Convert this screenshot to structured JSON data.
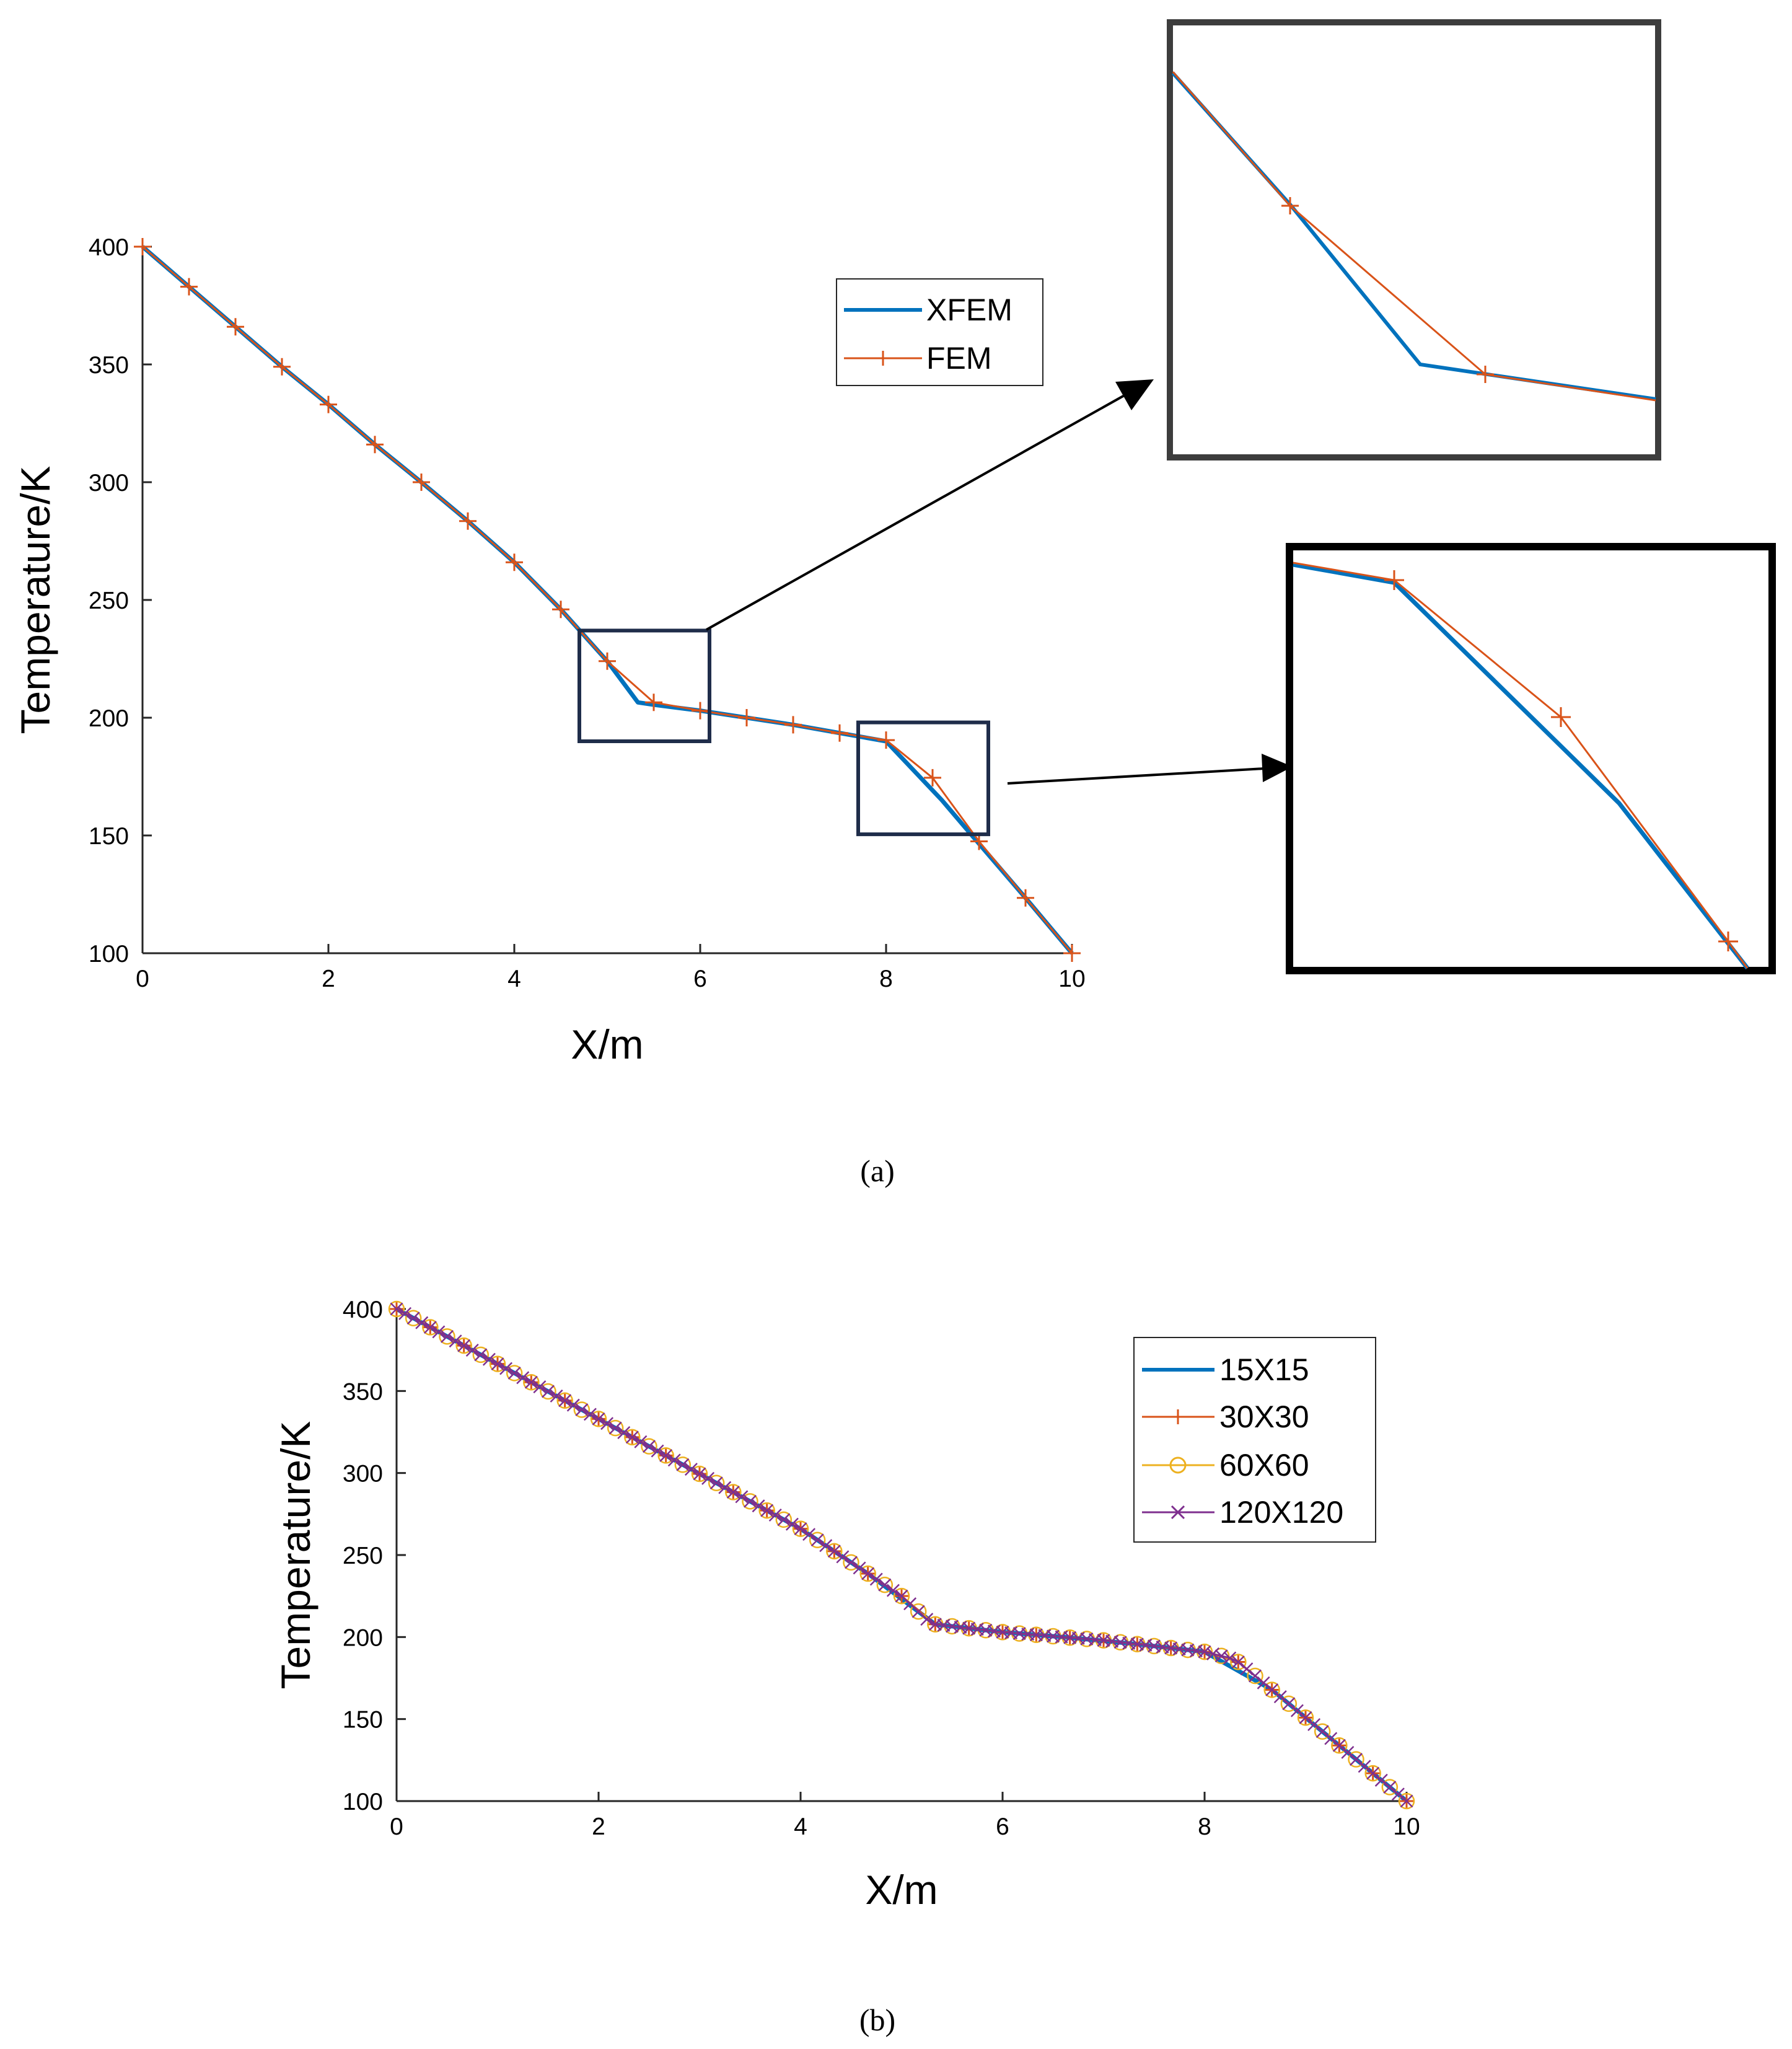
{
  "colors": {
    "xfem": "#0072BD",
    "fem": "#D95319",
    "mesh_15": "#0072BD",
    "mesh_30": "#D95319",
    "mesh_60": "#EDB120",
    "mesh_120": "#7E2F8E",
    "zoom_box": "#1f2d4a",
    "inset_a_frame": "#3d3d3d",
    "inset_b_frame": "#000000"
  },
  "chart_data": [
    {
      "id": "a",
      "caption": "(a)",
      "type": "line",
      "xlabel": "X/m",
      "ylabel": "Temperature/K",
      "xlim": [
        0,
        10
      ],
      "ylim": [
        100,
        400
      ],
      "xticks": [
        "0",
        "2",
        "4",
        "6",
        "8",
        "10"
      ],
      "yticks": [
        "100",
        "150",
        "200",
        "250",
        "300",
        "350",
        "400"
      ],
      "legend_position": "inside-top-right",
      "series": [
        {
          "name": "XFEM",
          "marker": "none",
          "x": [
            0,
            0.5,
            1,
            1.5,
            2,
            2.5,
            3,
            3.5,
            4,
            4.5,
            5,
            5.33,
            5.5,
            6,
            6.5,
            7,
            7.5,
            8,
            8.6,
            9,
            9.5,
            10
          ],
          "y": [
            400,
            383,
            366,
            349,
            333,
            316,
            300,
            283.5,
            266,
            246,
            224,
            206.5,
            205.5,
            203,
            200,
            197,
            193.5,
            190,
            165,
            146.5,
            123.5,
            100
          ]
        },
        {
          "name": "FEM",
          "marker": "+",
          "x": [
            0,
            0.5,
            1,
            1.5,
            2,
            2.5,
            3,
            3.5,
            4,
            4.5,
            5,
            5.5,
            6,
            6.5,
            7,
            7.5,
            8,
            8.5,
            9,
            9.5,
            10
          ],
          "y": [
            400,
            383,
            366,
            349,
            333,
            316,
            300,
            283.5,
            266,
            246,
            224,
            206.5,
            203,
            200,
            197,
            193.5,
            190.5,
            174.5,
            147.5,
            123.5,
            100
          ]
        }
      ],
      "zoom_regions": [
        {
          "x": [
            4.7,
            6.1
          ],
          "y": [
            190,
            237
          ],
          "inset": "top"
        },
        {
          "x": [
            7.7,
            9.1
          ],
          "y": [
            150.5,
            198
          ],
          "inset": "bottom"
        }
      ]
    },
    {
      "id": "b",
      "caption": "(b)",
      "type": "line",
      "xlabel": "X/m",
      "ylabel": "Temperature/K",
      "xlim": [
        0,
        10
      ],
      "ylim": [
        100,
        400
      ],
      "xticks": [
        "0",
        "2",
        "4",
        "6",
        "8",
        "10"
      ],
      "yticks": [
        "100",
        "150",
        "200",
        "250",
        "300",
        "350",
        "400"
      ],
      "legend_position": "inside-top-right",
      "profile": {
        "x": [
          0,
          4,
          5,
          5.3,
          6,
          7,
          8,
          8.3,
          10
        ],
        "y": [
          400,
          266,
          225,
          208,
          203,
          198,
          191,
          186.5,
          100
        ]
      },
      "series": [
        {
          "name": "15X15",
          "marker": "none",
          "count": 16
        },
        {
          "name": "30X30",
          "marker": "+",
          "count": 31
        },
        {
          "name": "60X60",
          "marker": "o",
          "count": 61
        },
        {
          "name": "120X120",
          "marker": "x",
          "count": 121
        }
      ]
    }
  ]
}
